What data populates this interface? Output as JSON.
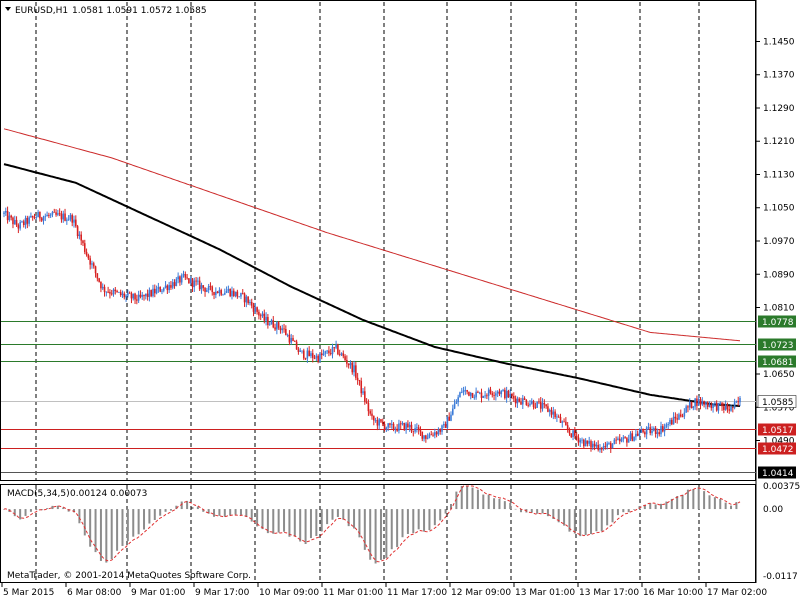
{
  "header": {
    "symbol_label": "EURUSD,H1",
    "ohlc": "1.0581 1.0591 1.0572 1.0585"
  },
  "macd": {
    "label": "MACD(5,34,5)",
    "values": "0.00124 0.00073",
    "axis_labels": [
      "0.00375",
      "0.00",
      "-0.0117"
    ]
  },
  "copyright": "MetaTrader, © 2001-2014 MetaQuotes Software Corp.",
  "colors": {
    "bull": "#3b7bd8",
    "bear": "#d82020",
    "ma_fast": "#000000",
    "ma_slow": "#cc2a2a",
    "level_green": "#2b7a2b",
    "level_red": "#cc2020",
    "current_price": "#c0c0c0",
    "macd_hist": "#8c8c8c",
    "macd_signal": "#e03030",
    "grid": "#000000"
  },
  "chart_data": {
    "type": "candlestick",
    "symbol": "EURUSD",
    "timeframe": "H1",
    "ylim": [
      1.0395,
      1.1545
    ],
    "y_ticks": [
      "1.1450",
      "1.1370",
      "1.1290",
      "1.1210",
      "1.1130",
      "1.1050",
      "1.0970",
      "1.0890",
      "1.0810",
      "1.0650",
      "1.0570",
      "1.0490"
    ],
    "x_ticks": [
      "5 Mar 2015",
      "6 Mar 08:00",
      "9 Mar 01:00",
      "9 Mar 17:00",
      "10 Mar 09:00",
      "11 Mar 01:00",
      "11 Mar 17:00",
      "12 Mar 09:00",
      "13 Mar 01:00",
      "13 Mar 17:00",
      "16 Mar 10:00",
      "17 Mar 02:00"
    ],
    "current_price": "1.0585",
    "price_levels": [
      {
        "value": 1.0778,
        "label": "1.0778",
        "color": "green"
      },
      {
        "value": 1.0723,
        "label": "1.0723",
        "color": "green"
      },
      {
        "value": 1.0681,
        "label": "1.0681",
        "color": "green"
      },
      {
        "value": 1.0517,
        "label": "1.0517",
        "color": "red"
      },
      {
        "value": 1.0472,
        "label": "1.0472",
        "color": "red"
      },
      {
        "value": 1.0414,
        "label": "1.0414",
        "color": "dark"
      }
    ],
    "close_anchors": [
      [
        0,
        1.1035
      ],
      [
        8,
        1.1005
      ],
      [
        18,
        1.103
      ],
      [
        30,
        1.103
      ],
      [
        38,
        1.1025
      ],
      [
        45,
        1.095
      ],
      [
        55,
        1.0855
      ],
      [
        65,
        1.084
      ],
      [
        75,
        1.083
      ],
      [
        90,
        1.086
      ],
      [
        100,
        1.088
      ],
      [
        115,
        1.085
      ],
      [
        125,
        1.085
      ],
      [
        135,
        1.083
      ],
      [
        145,
        1.078
      ],
      [
        155,
        1.076
      ],
      [
        165,
        1.07
      ],
      [
        175,
        1.069
      ],
      [
        185,
        1.071
      ],
      [
        195,
        1.066
      ],
      [
        205,
        1.054
      ],
      [
        215,
        1.052
      ],
      [
        225,
        1.0525
      ],
      [
        235,
        1.05
      ],
      [
        245,
        1.052
      ],
      [
        255,
        1.061
      ],
      [
        265,
        1.06
      ],
      [
        275,
        1.061
      ],
      [
        285,
        1.059
      ],
      [
        295,
        1.058
      ],
      [
        305,
        1.056
      ],
      [
        315,
        1.051
      ],
      [
        325,
        1.048
      ],
      [
        335,
        1.0475
      ],
      [
        345,
        1.049
      ],
      [
        355,
        1.051
      ],
      [
        365,
        1.0515
      ],
      [
        375,
        1.0545
      ],
      [
        385,
        1.0585
      ],
      [
        395,
        1.0575
      ],
      [
        405,
        1.0565
      ],
      [
        410,
        1.0585
      ]
    ],
    "ma_fast_anchors": [
      [
        0,
        1.1155
      ],
      [
        40,
        1.111
      ],
      [
        80,
        1.103
      ],
      [
        120,
        1.095
      ],
      [
        160,
        1.086
      ],
      [
        200,
        1.078
      ],
      [
        240,
        1.0715
      ],
      [
        280,
        1.0675
      ],
      [
        320,
        1.064
      ],
      [
        360,
        1.06
      ],
      [
        395,
        1.0577
      ],
      [
        410,
        1.0573
      ]
    ],
    "ma_slow_anchors": [
      [
        0,
        1.124
      ],
      [
        60,
        1.117
      ],
      [
        120,
        1.108
      ],
      [
        180,
        1.099
      ],
      [
        240,
        1.091
      ],
      [
        300,
        1.083
      ],
      [
        360,
        1.075
      ],
      [
        410,
        1.073
      ]
    ],
    "macd_ylim": [
      -0.0117,
      0.00375
    ]
  }
}
